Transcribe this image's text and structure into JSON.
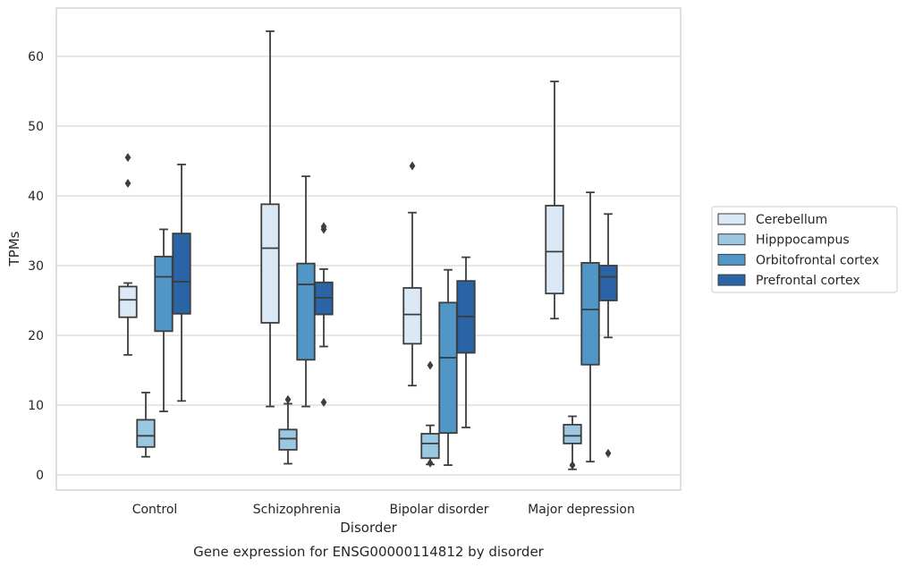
{
  "chart_data": {
    "type": "box",
    "title": "Gene expression for ENSG00000114812 by disorder",
    "xlabel": "Disorder",
    "ylabel": "TPMs",
    "ylim": [
      -2,
      67
    ],
    "yticks": [
      0,
      10,
      20,
      30,
      40,
      50,
      60
    ],
    "grid": "horizontal",
    "legend_position": "right",
    "categories": [
      "Control",
      "Schizophrenia",
      "Bipolar disorder",
      "Major depression"
    ],
    "series": [
      {
        "name": "Cerebellum",
        "color": "#dbe9f6",
        "boxes": [
          {
            "whisker_low": 17.2,
            "q1": 22.6,
            "median": 25.1,
            "q3": 27.0,
            "whisker_high": 27.5,
            "outliers": [
              41.8,
              45.5
            ]
          },
          {
            "whisker_low": 9.8,
            "q1": 21.8,
            "median": 32.5,
            "q3": 38.8,
            "whisker_high": 63.6,
            "outliers": []
          },
          {
            "whisker_low": 12.8,
            "q1": 18.8,
            "median": 23.0,
            "q3": 26.8,
            "whisker_high": 37.6,
            "outliers": [
              44.3
            ]
          },
          {
            "whisker_low": 22.4,
            "q1": 26.0,
            "median": 32.0,
            "q3": 38.6,
            "whisker_high": 56.4,
            "outliers": []
          }
        ]
      },
      {
        "name": "Hipppocampus",
        "color": "#9ac8e1",
        "boxes": [
          {
            "whisker_low": 2.6,
            "q1": 4.0,
            "median": 5.6,
            "q3": 7.9,
            "whisker_high": 11.8,
            "outliers": []
          },
          {
            "whisker_low": 1.6,
            "q1": 3.6,
            "median": 5.2,
            "q3": 6.5,
            "whisker_high": 10.2,
            "outliers": [
              10.8
            ]
          },
          {
            "whisker_low": 1.5,
            "q1": 2.4,
            "median": 4.5,
            "q3": 5.9,
            "whisker_high": 7.1,
            "outliers": [
              1.7,
              15.7
            ]
          },
          {
            "whisker_low": 0.8,
            "q1": 4.5,
            "median": 5.6,
            "q3": 7.2,
            "whisker_high": 8.4,
            "outliers": [
              1.4
            ]
          }
        ]
      },
      {
        "name": "Orbitofrontal cortex",
        "color": "#5097c8",
        "boxes": [
          {
            "whisker_low": 9.1,
            "q1": 20.6,
            "median": 28.4,
            "q3": 31.3,
            "whisker_high": 35.2,
            "outliers": []
          },
          {
            "whisker_low": 9.8,
            "q1": 16.5,
            "median": 27.3,
            "q3": 30.3,
            "whisker_high": 42.8,
            "outliers": []
          },
          {
            "whisker_low": 1.4,
            "q1": 6.0,
            "median": 16.8,
            "q3": 24.7,
            "whisker_high": 29.4,
            "outliers": []
          },
          {
            "whisker_low": 1.9,
            "q1": 15.8,
            "median": 23.7,
            "q3": 30.4,
            "whisker_high": 40.5,
            "outliers": []
          }
        ]
      },
      {
        "name": "Prefrontal cortex",
        "color": "#2a64a6",
        "boxes": [
          {
            "whisker_low": 10.6,
            "q1": 23.1,
            "median": 27.7,
            "q3": 34.6,
            "whisker_high": 44.5,
            "outliers": []
          },
          {
            "whisker_low": 18.4,
            "q1": 23.0,
            "median": 25.4,
            "q3": 27.6,
            "whisker_high": 29.5,
            "outliers": [
              10.4,
              35.2,
              35.6
            ]
          },
          {
            "whisker_low": 6.8,
            "q1": 17.5,
            "median": 22.7,
            "q3": 27.8,
            "whisker_high": 31.2,
            "outliers": []
          },
          {
            "whisker_low": 19.7,
            "q1": 25.0,
            "median": 28.4,
            "q3": 30.0,
            "whisker_high": 37.4,
            "outliers": [
              3.1
            ]
          }
        ]
      }
    ]
  }
}
